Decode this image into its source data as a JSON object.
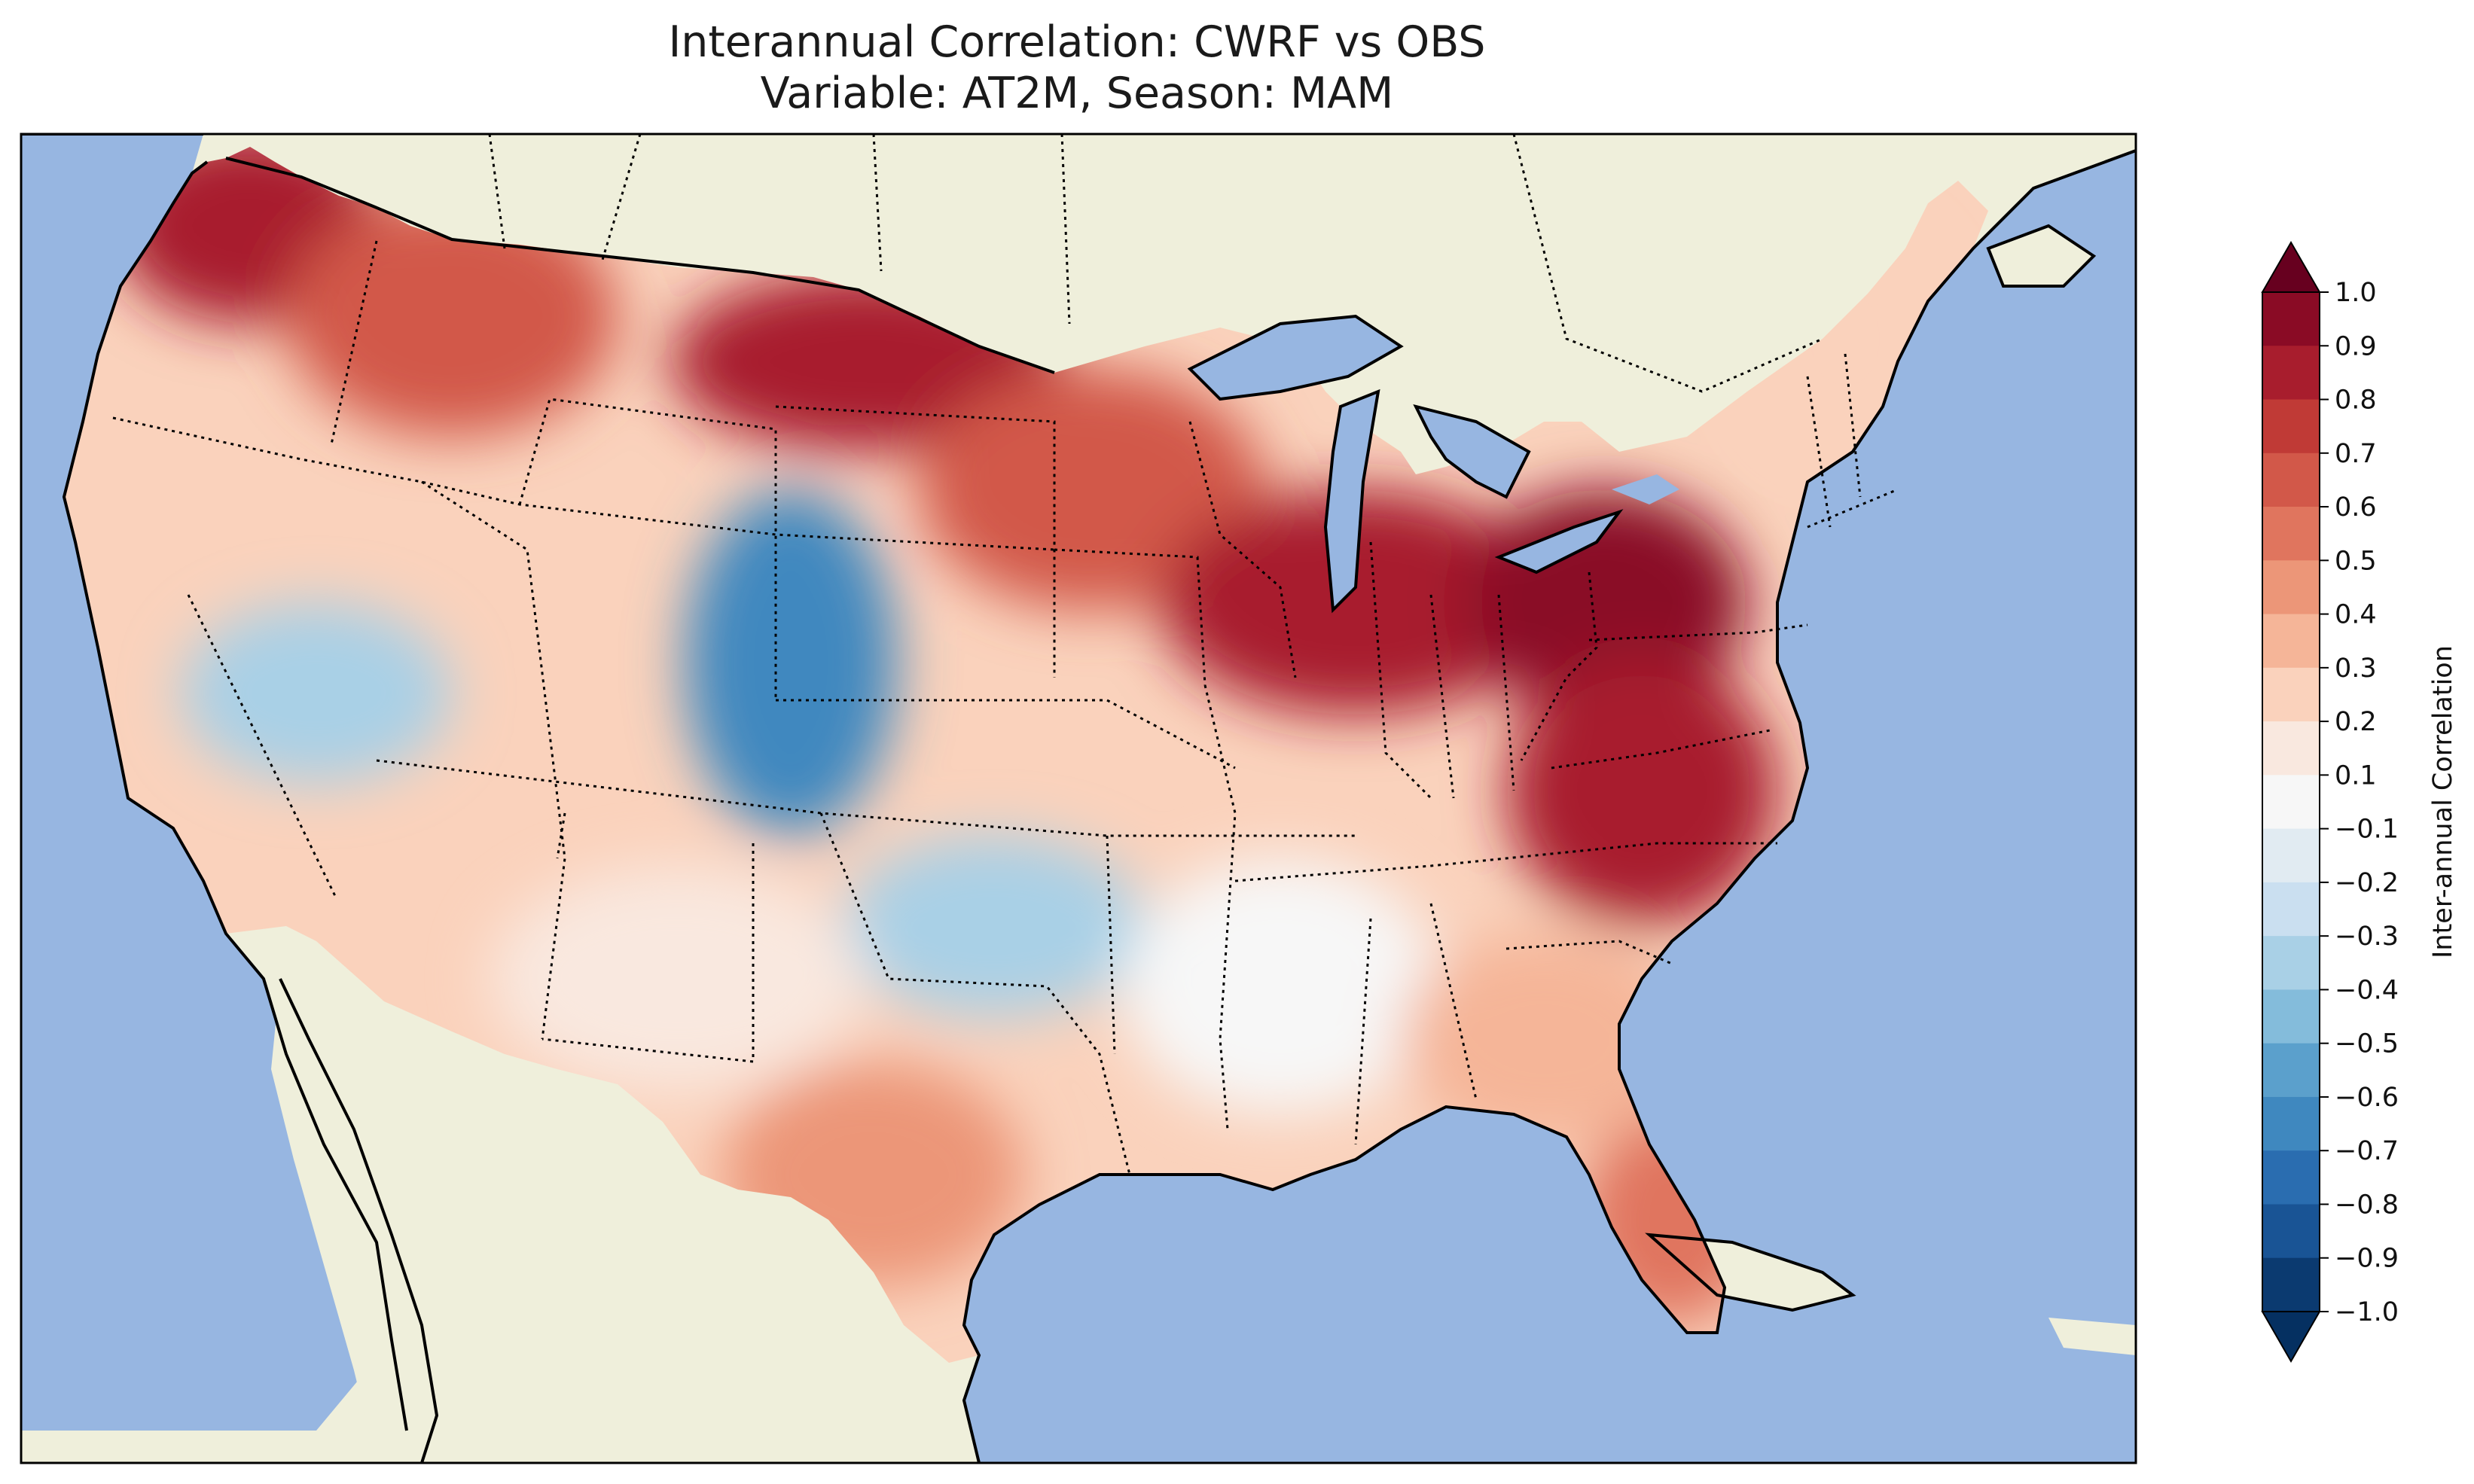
{
  "figure": {
    "title_line1": "Interannual Correlation: CWRF vs OBS",
    "title_line2": "Variable: AT2M, Season: MAM"
  },
  "map": {
    "ocean_color": "#97b6e1",
    "land_color": "#efefdb",
    "lake_color": "#97b6e1",
    "border_style": "dotted",
    "regions": [
      {
        "name": "pacific-northwest",
        "value": 0.8
      },
      {
        "name": "northern-rockies",
        "value": 0.6
      },
      {
        "name": "northern-plains",
        "value": 0.8
      },
      {
        "name": "upper-midwest",
        "value": 0.6
      },
      {
        "name": "ohio-valley",
        "value": 0.8
      },
      {
        "name": "mid-atlantic",
        "value": 0.9
      },
      {
        "name": "carolinas",
        "value": 0.8
      },
      {
        "name": "great-basin",
        "value": -0.4
      },
      {
        "name": "colorado",
        "value": -0.7
      },
      {
        "name": "kansas-oklahoma",
        "value": -0.4
      },
      {
        "name": "southwest",
        "value": 0.1
      },
      {
        "name": "texas",
        "value": 0.4
      },
      {
        "name": "lower-mississippi",
        "value": 0.0
      },
      {
        "name": "southeast",
        "value": 0.3
      },
      {
        "name": "florida",
        "value": 0.5
      },
      {
        "name": "new-england",
        "value": 0.2
      }
    ]
  },
  "colorbar": {
    "label": "Inter-annual Correlation",
    "ticks": [
      "1.0",
      "0.9",
      "0.8",
      "0.7",
      "0.6",
      "0.5",
      "0.4",
      "0.3",
      "0.2",
      "0.1",
      "−0.1",
      "−0.2",
      "−0.3",
      "−0.4",
      "−0.5",
      "−0.6",
      "−0.7",
      "−0.8",
      "−0.9",
      "−1.0"
    ],
    "colors": [
      "#67001f",
      "#8a0b25",
      "#a81d2d",
      "#c03a36",
      "#d25849",
      "#e0755e",
      "#ec9678",
      "#f5b598",
      "#fad2bc",
      "#f9e8df",
      "#f7f7f7",
      "#e1ebf2",
      "#cadff0",
      "#a9d0e6",
      "#84bcdb",
      "#5ba0cc",
      "#3f88bf",
      "#2a6db0",
      "#195495",
      "#0b3a70",
      "#053061"
    ],
    "extend_top_color": "#67001f",
    "extend_bottom_color": "#053061"
  }
}
